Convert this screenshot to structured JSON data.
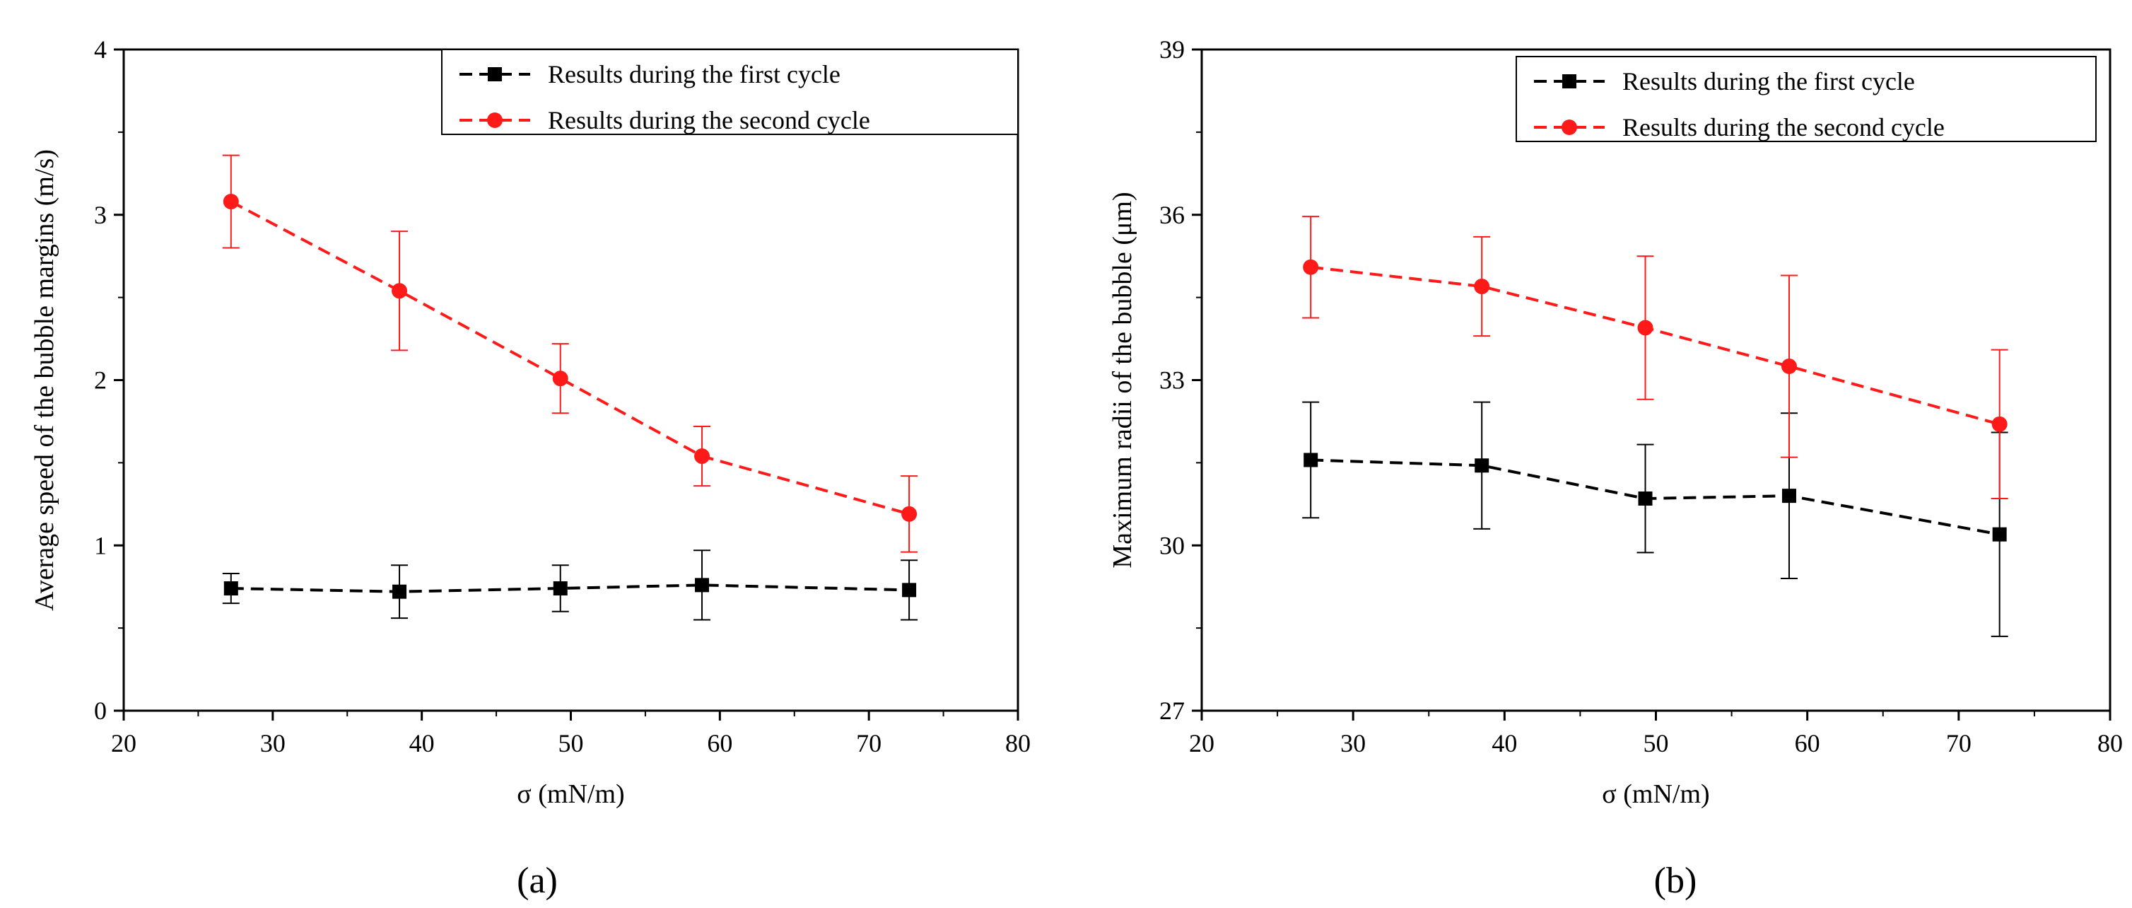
{
  "figure": {
    "panel_labels": [
      "(a)",
      "(b)"
    ]
  },
  "chart_data": [
    {
      "type": "line",
      "panel_label": "(a)",
      "xlabel": "σ (mN/m)",
      "ylabel": "Average speed of the bubble margins (m/s)",
      "xlim": [
        20,
        80
      ],
      "ylim": [
        0,
        4
      ],
      "xticks": [
        20,
        30,
        40,
        50,
        60,
        70,
        80
      ],
      "yticks": [
        0,
        1,
        2,
        3,
        4
      ],
      "x": [
        27.2,
        38.5,
        49.3,
        58.8,
        72.7
      ],
      "legend_position": "top-right",
      "grid": false,
      "series": [
        {
          "name": "Results during the first cycle",
          "color": "#000000",
          "marker": "square",
          "values": [
            0.74,
            0.72,
            0.74,
            0.76,
            0.73
          ],
          "errors": [
            0.09,
            0.16,
            0.14,
            0.21,
            0.18
          ]
        },
        {
          "name": "Results during the second cycle",
          "color": "#ff1a1a",
          "marker": "circle",
          "values": [
            3.08,
            2.54,
            2.01,
            1.54,
            1.19
          ],
          "errors": [
            0.28,
            0.36,
            0.21,
            0.18,
            0.23
          ]
        }
      ]
    },
    {
      "type": "line",
      "panel_label": "(b)",
      "xlabel": "σ (mN/m)",
      "ylabel": "Maximum radii of the bubble (μm)",
      "xlim": [
        20,
        80
      ],
      "ylim": [
        27,
        39
      ],
      "xticks": [
        20,
        30,
        40,
        50,
        60,
        70,
        80
      ],
      "yticks": [
        27,
        30,
        33,
        36,
        39
      ],
      "x": [
        27.2,
        38.5,
        49.3,
        58.8,
        72.7
      ],
      "legend_position": "top-right",
      "grid": false,
      "series": [
        {
          "name": "Results during the first cycle",
          "color": "#000000",
          "marker": "square",
          "values": [
            31.55,
            31.45,
            30.85,
            30.9,
            30.2
          ],
          "errors": [
            1.05,
            1.15,
            0.98,
            1.5,
            1.85
          ]
        },
        {
          "name": "Results during the second cycle",
          "color": "#ff1a1a",
          "marker": "circle",
          "values": [
            35.05,
            34.7,
            33.95,
            33.25,
            32.2
          ],
          "errors": [
            0.92,
            0.9,
            1.3,
            1.65,
            1.35
          ]
        }
      ]
    }
  ]
}
